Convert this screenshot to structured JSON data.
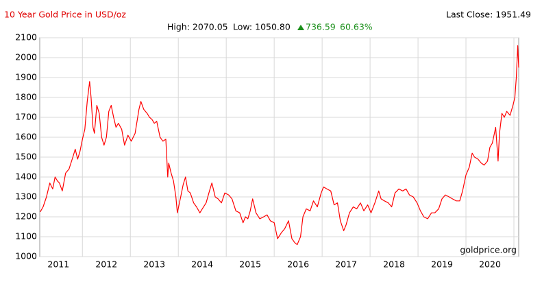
{
  "chart_data": {
    "type": "line",
    "title": "10 Year Gold Price in USD/oz",
    "last_close": "Last Close: 1951.49",
    "high": "High: 2070.05",
    "low": "Low: 1050.80",
    "change": "736.59",
    "change_pct": "60.63%",
    "watermark": "goldprice.org",
    "color": "#ff0000",
    "grid": true,
    "xlim": [
      2010.61,
      2020.6
    ],
    "xticks": [
      2011,
      2012,
      2013,
      2014,
      2015,
      2016,
      2017,
      2018,
      2019,
      2020
    ],
    "ylim": [
      1000,
      2100
    ],
    "yticks": [
      1000,
      1100,
      1200,
      1300,
      1400,
      1500,
      1600,
      1700,
      1800,
      1900,
      2000,
      2100
    ],
    "x": [
      2010.62,
      2010.68,
      2010.75,
      2010.82,
      2010.88,
      2010.93,
      2010.98,
      2011.02,
      2011.08,
      2011.15,
      2011.22,
      2011.3,
      2011.35,
      2011.4,
      2011.45,
      2011.5,
      2011.55,
      2011.6,
      2011.65,
      2011.68,
      2011.72,
      2011.75,
      2011.8,
      2011.85,
      2011.9,
      2011.95,
      2012.0,
      2012.05,
      2012.1,
      2012.15,
      2012.2,
      2012.25,
      2012.32,
      2012.38,
      2012.45,
      2012.52,
      2012.6,
      2012.68,
      2012.72,
      2012.78,
      2012.85,
      2012.9,
      2012.95,
      2013.0,
      2013.05,
      2013.12,
      2013.18,
      2013.24,
      2013.28,
      2013.3,
      2013.35,
      2013.4,
      2013.45,
      2013.48,
      2013.55,
      2013.6,
      2013.65,
      2013.7,
      2013.75,
      2013.82,
      2013.88,
      2013.95,
      2014.0,
      2014.08,
      2014.15,
      2014.2,
      2014.27,
      2014.33,
      2014.4,
      2014.47,
      2014.55,
      2014.62,
      2014.7,
      2014.78,
      2014.85,
      2014.9,
      2014.95,
      2015.0,
      2015.05,
      2015.12,
      2015.2,
      2015.28,
      2015.35,
      2015.42,
      2015.5,
      2015.57,
      2015.65,
      2015.72,
      2015.8,
      2015.87,
      2015.93,
      2015.98,
      2016.05,
      2016.1,
      2016.17,
      2016.25,
      2016.32,
      2016.4,
      2016.48,
      2016.53,
      2016.6,
      2016.68,
      2016.75,
      2016.82,
      2016.88,
      2016.95,
      2017.0,
      2017.07,
      2017.15,
      2017.22,
      2017.3,
      2017.37,
      2017.45,
      2017.52,
      2017.6,
      2017.68,
      2017.73,
      2017.8,
      2017.88,
      2017.95,
      2018.02,
      2018.1,
      2018.18,
      2018.25,
      2018.32,
      2018.4,
      2018.48,
      2018.55,
      2018.62,
      2018.7,
      2018.78,
      2018.85,
      2018.93,
      2019.0,
      2019.07,
      2019.15,
      2019.22,
      2019.3,
      2019.37,
      2019.43,
      2019.5,
      2019.57,
      2019.63,
      2019.68,
      2019.75,
      2019.82,
      2019.88,
      2019.95,
      2020.0,
      2020.05,
      2020.12,
      2020.17,
      2020.2,
      2020.25,
      2020.3,
      2020.35,
      2020.42,
      2020.48,
      2020.52,
      2020.55,
      2020.58,
      2020.6
    ],
    "values": [
      1225,
      1250,
      1300,
      1370,
      1340,
      1400,
      1380,
      1370,
      1330,
      1420,
      1440,
      1500,
      1540,
      1490,
      1530,
      1590,
      1640,
      1780,
      1880,
      1800,
      1650,
      1620,
      1760,
      1720,
      1600,
      1560,
      1600,
      1730,
      1760,
      1700,
      1650,
      1670,
      1640,
      1560,
      1610,
      1580,
      1620,
      1740,
      1780,
      1740,
      1720,
      1700,
      1690,
      1670,
      1680,
      1600,
      1580,
      1590,
      1400,
      1470,
      1420,
      1380,
      1300,
      1220,
      1300,
      1360,
      1400,
      1330,
      1320,
      1270,
      1250,
      1220,
      1240,
      1270,
      1330,
      1370,
      1300,
      1290,
      1270,
      1320,
      1310,
      1290,
      1230,
      1220,
      1170,
      1200,
      1190,
      1230,
      1290,
      1220,
      1190,
      1200,
      1210,
      1180,
      1170,
      1090,
      1120,
      1140,
      1180,
      1090,
      1070,
      1060,
      1100,
      1200,
      1240,
      1230,
      1280,
      1250,
      1320,
      1350,
      1340,
      1330,
      1260,
      1270,
      1180,
      1130,
      1160,
      1220,
      1250,
      1240,
      1270,
      1230,
      1260,
      1220,
      1270,
      1330,
      1290,
      1280,
      1270,
      1250,
      1320,
      1340,
      1330,
      1340,
      1310,
      1300,
      1270,
      1230,
      1200,
      1190,
      1220,
      1220,
      1240,
      1290,
      1310,
      1300,
      1290,
      1280,
      1280,
      1330,
      1410,
      1450,
      1520,
      1500,
      1490,
      1470,
      1460,
      1480,
      1550,
      1570,
      1650,
      1480,
      1620,
      1720,
      1700,
      1730,
      1710,
      1760,
      1800,
      1900,
      2060,
      1950
    ]
  }
}
